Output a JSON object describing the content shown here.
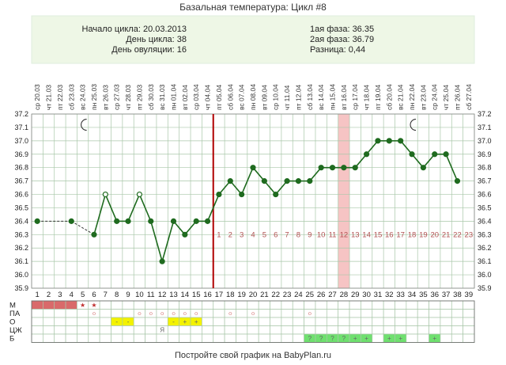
{
  "header": {
    "title": "Базальная температура: Цикл #8",
    "cycle_start": "Начало цикла: 20.03.2013",
    "cycle_day": "День цикла: 38",
    "ovulation_day": "День овуляции: 16",
    "phase1": "1ая фаза: 36.35",
    "phase2": "2ая фаза: 36.79",
    "difference": "Разница: 0,44"
  },
  "footer": "Постройте свой график на BabyPlan.ru",
  "colors": {
    "line": "#1f6b1f",
    "grid": "#a9c7a9",
    "header_bg": "#eef7e6",
    "ovulation_line": "#b00000",
    "highlight_band": "#f6c4c4",
    "menses": "#d96a6a",
    "yellow": "#f3f200",
    "green": "#6fe06f"
  },
  "chart_data": {
    "type": "line",
    "ylim": [
      35.9,
      37.2
    ],
    "yticks": [
      35.9,
      36.0,
      36.1,
      36.2,
      36.3,
      36.4,
      36.5,
      36.6,
      36.7,
      36.8,
      36.9,
      37.0,
      37.1,
      37.2
    ],
    "days": [
      1,
      2,
      3,
      4,
      5,
      6,
      7,
      8,
      9,
      10,
      11,
      12,
      13,
      14,
      15,
      16,
      17,
      18,
      19,
      20,
      21,
      22,
      23,
      24,
      25,
      26,
      27,
      28,
      29,
      30,
      31,
      32,
      33,
      34,
      35,
      36,
      37,
      38,
      39
    ],
    "dates": [
      "20.03",
      "21.03",
      "22.03",
      "23.03",
      "24.03",
      "25.03",
      "26.03",
      "27.03",
      "28.03",
      "29.03",
      "30.03",
      "31.03",
      "01.04",
      "02.04",
      "03.04",
      "04.04",
      "05.04",
      "06.04",
      "07.04",
      "08.04",
      "09.04",
      "10.04",
      "11.04",
      "12.04",
      "13.04",
      "14.04",
      "15.04",
      "16.04",
      "17.04",
      "18.04",
      "19.04",
      "20.04",
      "21.04",
      "22.04",
      "23.04",
      "24.04",
      "25.04",
      "26.04",
      "27.04"
    ],
    "weekdays": [
      "ср",
      "чт",
      "пт",
      "сб",
      "вс",
      "пн",
      "вт",
      "ср",
      "чт",
      "пт",
      "сб",
      "вс",
      "пн",
      "вт",
      "ср",
      "чт",
      "пт",
      "сб",
      "вс",
      "пн",
      "вт",
      "ср",
      "чт",
      "пт",
      "сб",
      "вс",
      "пн",
      "вт",
      "ср",
      "чт",
      "пт",
      "сб",
      "вс",
      "пн",
      "вт",
      "ср",
      "чт",
      "пт",
      "сб"
    ],
    "temps": [
      36.4,
      null,
      null,
      36.4,
      null,
      36.3,
      36.6,
      36.4,
      36.4,
      36.6,
      36.4,
      36.1,
      36.4,
      36.3,
      36.4,
      36.4,
      36.6,
      36.7,
      36.6,
      36.8,
      36.7,
      36.6,
      36.7,
      36.7,
      36.7,
      36.8,
      36.8,
      36.8,
      36.8,
      36.9,
      37.0,
      37.0,
      37.0,
      36.9,
      36.8,
      36.9,
      36.9,
      36.7,
      null
    ],
    "open_points": [
      7,
      10
    ],
    "dashed_segments": [
      [
        1,
        4
      ],
      [
        4,
        6
      ]
    ],
    "ovulation_day": 16,
    "highlight_day": 28,
    "luteal_numbers": [
      "1",
      "2",
      "3",
      "4",
      "5",
      "6",
      "7",
      "8",
      "9",
      "10",
      "11",
      "12",
      "13",
      "14",
      "15",
      "16",
      "17",
      "18",
      "19",
      "20",
      "21",
      "22",
      "23"
    ],
    "moon_days": [
      5,
      34
    ],
    "rows": [
      {
        "label": "М",
        "cells": {
          "1": "menses",
          "2": "menses",
          "3": "menses",
          "4": "menses",
          "5": "star",
          "6": "star"
        }
      },
      {
        "label": "ПА",
        "cells": {
          "6": "o",
          "10": "o",
          "11": "o",
          "12": "o",
          "13": "o",
          "14": "o",
          "15": "o",
          "18": "o",
          "20": "o",
          "25": "o"
        }
      },
      {
        "label": "О",
        "cells": {
          "8": "y-",
          "9": "y-",
          "13": "y-",
          "14": "y+",
          "15": "y+"
        }
      },
      {
        "label": "ЦЖ",
        "cells": {
          "12": "Я"
        }
      },
      {
        "label": "Б",
        "cells": {
          "25": "g?",
          "26": "g?",
          "27": "g?",
          "28": "g?",
          "29": "g+",
          "30": "g+",
          "32": "g+",
          "33": "g+",
          "36": "g+"
        }
      }
    ]
  }
}
